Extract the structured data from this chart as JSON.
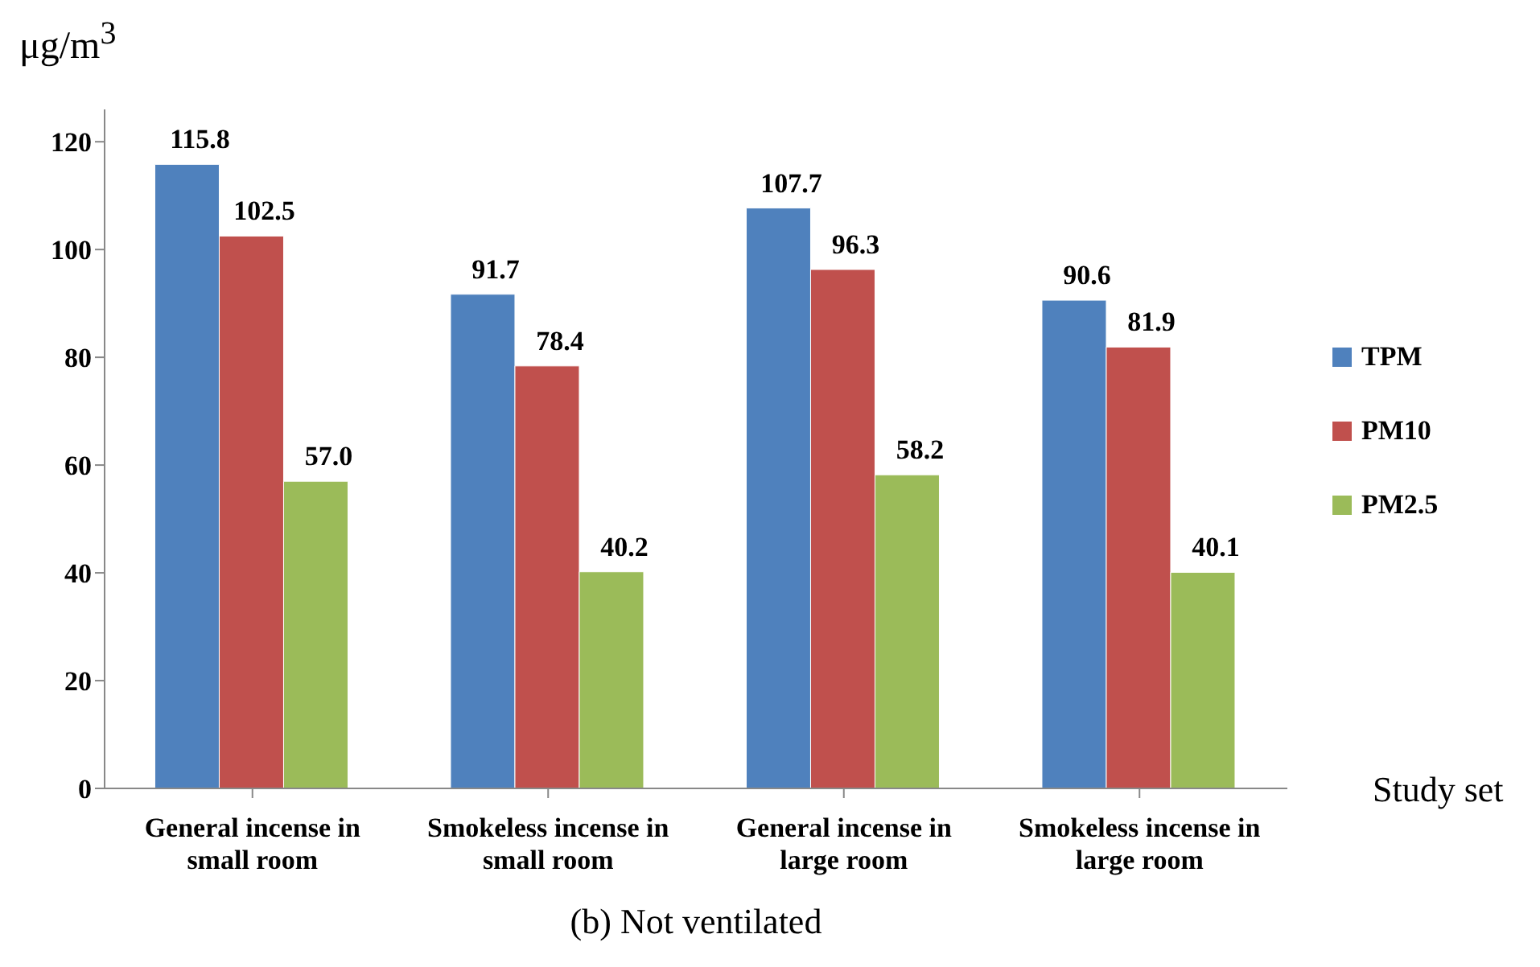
{
  "chart_data": {
    "type": "bar",
    "ylabel": "μg/m$^{3}$",
    "xlabel": "Study set",
    "annotations": [
      "(b) Not ventilated"
    ],
    "categories": [
      "General incense in small room",
      "Smokeless incense in small room",
      "General incense in large room",
      "Smokeless incense in large room"
    ],
    "series": [
      {
        "name": "TPM",
        "color": "#4f81bd",
        "values": [
          115.8,
          91.7,
          107.7,
          90.6
        ],
        "value_labels": [
          "115.8",
          "91.7",
          "107.7",
          "90.6"
        ]
      },
      {
        "name": "PM10",
        "color": "#c0504d",
        "values": [
          102.5,
          78.4,
          96.3,
          81.9
        ],
        "value_labels": [
          "102.5",
          "78.4",
          "96.3",
          "81.9"
        ]
      },
      {
        "name": "PM2.5",
        "color": "#9bbb59",
        "values": [
          57.0,
          40.2,
          58.2,
          40.1
        ],
        "value_labels": [
          "57.0",
          "40.2",
          "58.2",
          "40.1"
        ]
      }
    ],
    "ylim": [
      0,
      126
    ],
    "yticks": [
      0,
      20,
      40,
      60,
      80,
      100,
      120
    ],
    "legend": "right"
  }
}
